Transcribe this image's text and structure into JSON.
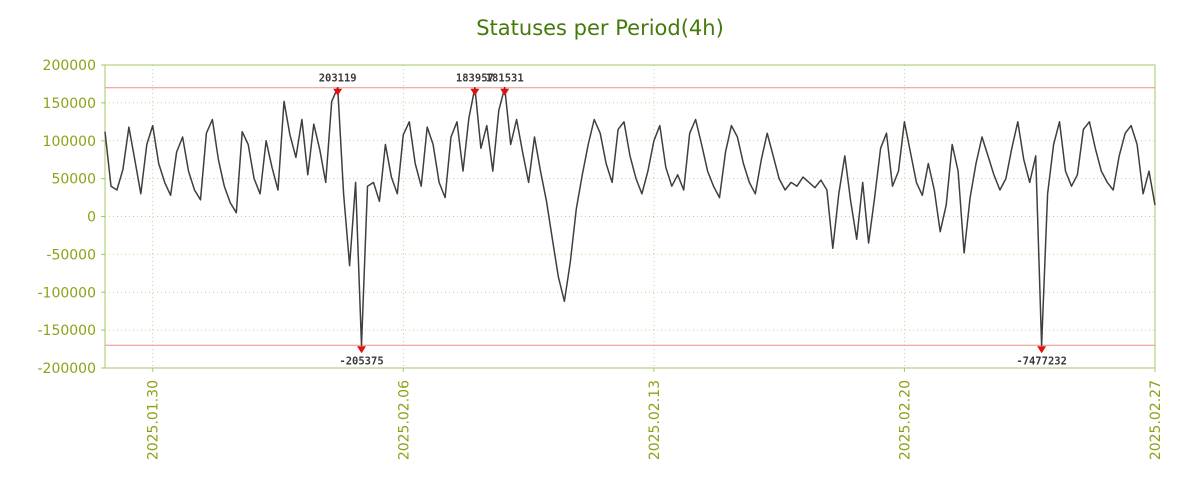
{
  "chart_data": {
    "type": "line",
    "title": "Statuses per Period(4h)",
    "x_start_label": "2025.01.28 16:00",
    "step_hours": 4,
    "ylim": [
      -200000,
      200000
    ],
    "clip_threshold": 170000,
    "grid": true,
    "y_ticks": [
      200000,
      150000,
      100000,
      50000,
      0,
      -50000,
      -100000,
      -150000,
      -200000
    ],
    "x_ticks": [
      {
        "index": 8,
        "label": "2025.01.30"
      },
      {
        "index": 50,
        "label": "2025.02.06"
      },
      {
        "index": 92,
        "label": "2025.02.13"
      },
      {
        "index": 134,
        "label": "2025.02.20"
      },
      {
        "index": 176,
        "label": "2025.02.27"
      }
    ],
    "annotations": [
      "203119",
      "183957",
      "181531",
      "-205375",
      "-7477232"
    ],
    "values": [
      112000,
      40000,
      35000,
      62000,
      118000,
      75000,
      30000,
      95000,
      120000,
      70000,
      45000,
      28000,
      85000,
      105000,
      60000,
      35000,
      22000,
      110000,
      128000,
      75000,
      40000,
      18000,
      5000,
      112000,
      95000,
      50000,
      30000,
      100000,
      65000,
      35000,
      152000,
      108000,
      78000,
      128000,
      55000,
      122000,
      88000,
      45000,
      152000,
      203119,
      30000,
      -65000,
      45000,
      -205375,
      40000,
      45000,
      20000,
      95000,
      52000,
      30000,
      108000,
      125000,
      70000,
      40000,
      118000,
      95000,
      45000,
      25000,
      105000,
      125000,
      60000,
      130000,
      183957,
      90000,
      120000,
      60000,
      140000,
      181531,
      95000,
      128000,
      85000,
      45000,
      105000,
      60000,
      20000,
      -30000,
      -80000,
      -112000,
      -60000,
      10000,
      55000,
      95000,
      128000,
      110000,
      70000,
      45000,
      115000,
      125000,
      80000,
      50000,
      30000,
      60000,
      100000,
      120000,
      65000,
      40000,
      55000,
      35000,
      110000,
      128000,
      95000,
      60000,
      40000,
      25000,
      85000,
      120000,
      105000,
      70000,
      45000,
      30000,
      75000,
      110000,
      80000,
      50000,
      35000,
      45000,
      40000,
      52000,
      45000,
      38000,
      48000,
      35000,
      -42000,
      30000,
      80000,
      20000,
      -30000,
      45000,
      -35000,
      25000,
      90000,
      110000,
      40000,
      60000,
      125000,
      85000,
      45000,
      28000,
      70000,
      35000,
      -20000,
      15000,
      95000,
      60000,
      -48000,
      25000,
      70000,
      105000,
      80000,
      55000,
      35000,
      50000,
      90000,
      125000,
      75000,
      45000,
      80000,
      -7477232,
      30000,
      95000,
      125000,
      60000,
      40000,
      55000,
      115000,
      125000,
      90000,
      60000,
      45000,
      35000,
      80000,
      110000,
      120000,
      95000,
      30000,
      60000,
      15000
    ],
    "colors": {
      "background": "#ffffff",
      "title": "#457a0a",
      "tick_text": "#8fa118",
      "border": "#a6c866",
      "grid": "#bcd792",
      "line": "#3f3f3f",
      "threshold": "#f09080",
      "marker": "#e01010",
      "annotation_text": "#3a3a3a"
    }
  }
}
